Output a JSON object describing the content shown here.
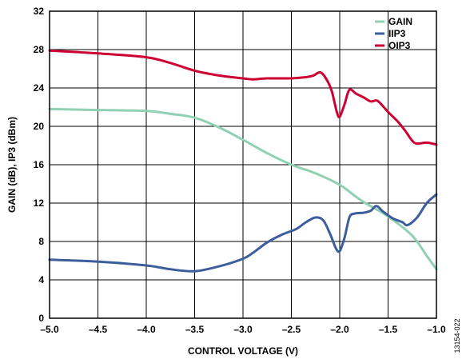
{
  "figure_id": "13154-022",
  "chart_data": {
    "type": "line",
    "title": "",
    "xlabel": "CONTROL VOLTAGE (V)",
    "ylabel": "GAIN (dB), IP3 (dBm)",
    "xlim": [
      -5.0,
      -1.0
    ],
    "ylim": [
      0,
      32
    ],
    "xticks": [
      -5.0,
      -4.5,
      -4.0,
      -3.5,
      -3.0,
      -2.5,
      -2.0,
      -1.5,
      -1.0
    ],
    "xtick_labels": [
      "–5.0",
      "–4.5",
      "–4.0",
      "–3.5",
      "–3.0",
      "–2.5",
      "–2.0",
      "–1.5",
      "–1.0"
    ],
    "yticks": [
      0,
      4,
      8,
      12,
      16,
      20,
      24,
      28,
      32
    ],
    "ytick_labels": [
      "0",
      "4",
      "8",
      "12",
      "16",
      "20",
      "24",
      "28",
      "32"
    ],
    "grid": true,
    "legend_position": "top-right",
    "series": [
      {
        "name": "GAIN",
        "color": "#8fd1b2",
        "points": [
          [
            -5.0,
            21.8
          ],
          [
            -4.5,
            21.7
          ],
          [
            -4.0,
            21.6
          ],
          [
            -3.75,
            21.3
          ],
          [
            -3.5,
            20.9
          ],
          [
            -3.25,
            19.9
          ],
          [
            -3.0,
            18.6
          ],
          [
            -2.75,
            17.2
          ],
          [
            -2.5,
            16.0
          ],
          [
            -2.25,
            15.1
          ],
          [
            -2.0,
            13.9
          ],
          [
            -1.85,
            12.8
          ],
          [
            -1.75,
            12.1
          ],
          [
            -1.5,
            10.6
          ],
          [
            -1.25,
            8.6
          ],
          [
            -1.1,
            6.5
          ],
          [
            -1.0,
            5.1
          ]
        ]
      },
      {
        "name": "IIP3",
        "color": "#3c5e9c",
        "points": [
          [
            -5.0,
            6.1
          ],
          [
            -4.5,
            5.9
          ],
          [
            -4.0,
            5.5
          ],
          [
            -3.75,
            5.1
          ],
          [
            -3.5,
            4.9
          ],
          [
            -3.25,
            5.4
          ],
          [
            -3.0,
            6.2
          ],
          [
            -2.9,
            6.8
          ],
          [
            -2.75,
            7.9
          ],
          [
            -2.6,
            8.7
          ],
          [
            -2.45,
            9.3
          ],
          [
            -2.35,
            10.0
          ],
          [
            -2.25,
            10.5
          ],
          [
            -2.17,
            10.2
          ],
          [
            -2.1,
            8.8
          ],
          [
            -2.04,
            7.3
          ],
          [
            -2.0,
            7.0
          ],
          [
            -1.95,
            8.4
          ],
          [
            -1.9,
            10.5
          ],
          [
            -1.85,
            10.9
          ],
          [
            -1.75,
            11.0
          ],
          [
            -1.68,
            11.2
          ],
          [
            -1.62,
            11.7
          ],
          [
            -1.55,
            11.1
          ],
          [
            -1.45,
            10.4
          ],
          [
            -1.35,
            10.0
          ],
          [
            -1.3,
            9.7
          ],
          [
            -1.2,
            10.5
          ],
          [
            -1.1,
            12.0
          ],
          [
            -1.0,
            12.9
          ]
        ]
      },
      {
        "name": "OIP3",
        "color": "#cc0033",
        "points": [
          [
            -5.0,
            27.9
          ],
          [
            -4.5,
            27.6
          ],
          [
            -4.0,
            27.2
          ],
          [
            -3.75,
            26.6
          ],
          [
            -3.5,
            25.8
          ],
          [
            -3.25,
            25.3
          ],
          [
            -3.0,
            25.0
          ],
          [
            -2.9,
            24.9
          ],
          [
            -2.75,
            25.0
          ],
          [
            -2.5,
            25.0
          ],
          [
            -2.37,
            25.1
          ],
          [
            -2.27,
            25.3
          ],
          [
            -2.22,
            25.6
          ],
          [
            -2.18,
            25.5
          ],
          [
            -2.12,
            24.6
          ],
          [
            -2.08,
            23.6
          ],
          [
            -2.03,
            21.5
          ],
          [
            -2.0,
            21.0
          ],
          [
            -1.95,
            22.3
          ],
          [
            -1.9,
            23.8
          ],
          [
            -1.83,
            23.4
          ],
          [
            -1.75,
            23.0
          ],
          [
            -1.68,
            22.6
          ],
          [
            -1.62,
            22.7
          ],
          [
            -1.58,
            22.4
          ],
          [
            -1.5,
            21.5
          ],
          [
            -1.4,
            20.5
          ],
          [
            -1.32,
            19.5
          ],
          [
            -1.25,
            18.5
          ],
          [
            -1.2,
            18.2
          ],
          [
            -1.1,
            18.3
          ],
          [
            -1.0,
            18.1
          ]
        ]
      }
    ]
  }
}
